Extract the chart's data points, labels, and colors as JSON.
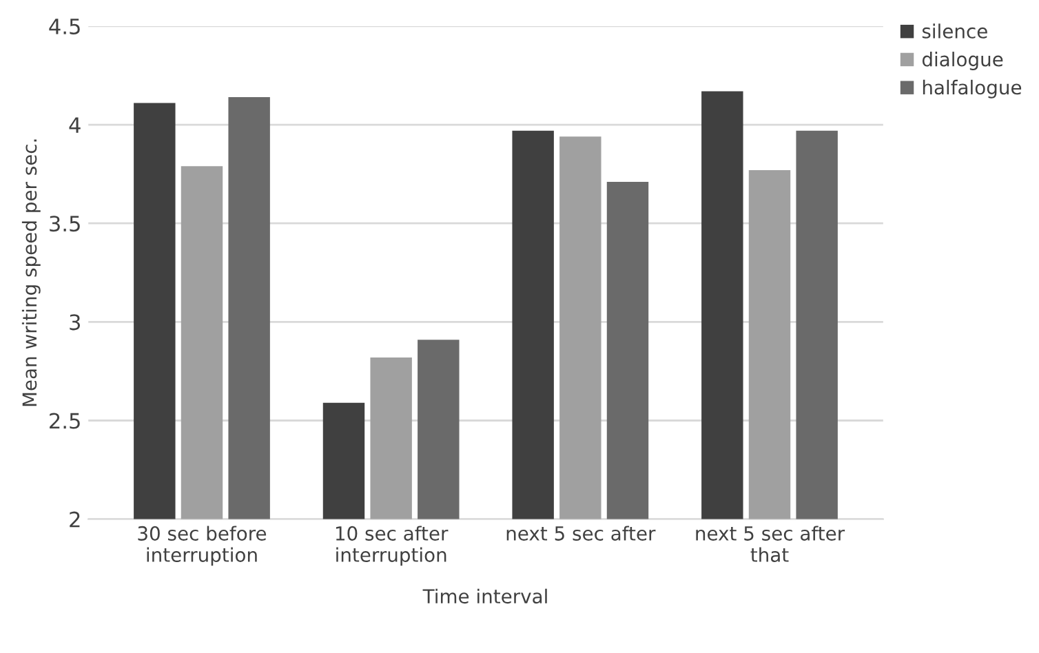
{
  "chart_data": {
    "type": "bar",
    "xlabel": "Time interval",
    "ylabel": "Mean writing speed per sec.",
    "categories": [
      "30 sec before\ninterruption",
      "10 sec after\ninterruption",
      "next 5 sec after",
      "next 5 sec after\nthat"
    ],
    "series": [
      {
        "name": "silence",
        "color": "#404040",
        "values": [
          4.11,
          2.59,
          3.97,
          4.17
        ]
      },
      {
        "name": "dialogue",
        "color": "#a0a0a0",
        "values": [
          3.79,
          2.82,
          3.94,
          3.77
        ]
      },
      {
        "name": "halfalogue",
        "color": "#6a6a6a",
        "values": [
          4.14,
          2.91,
          3.71,
          3.97
        ]
      }
    ],
    "ylim": [
      2,
      4.5
    ],
    "yticks": [
      2,
      2.5,
      3,
      3.5,
      4,
      4.5
    ],
    "grid": "y",
    "legend": "top right"
  }
}
